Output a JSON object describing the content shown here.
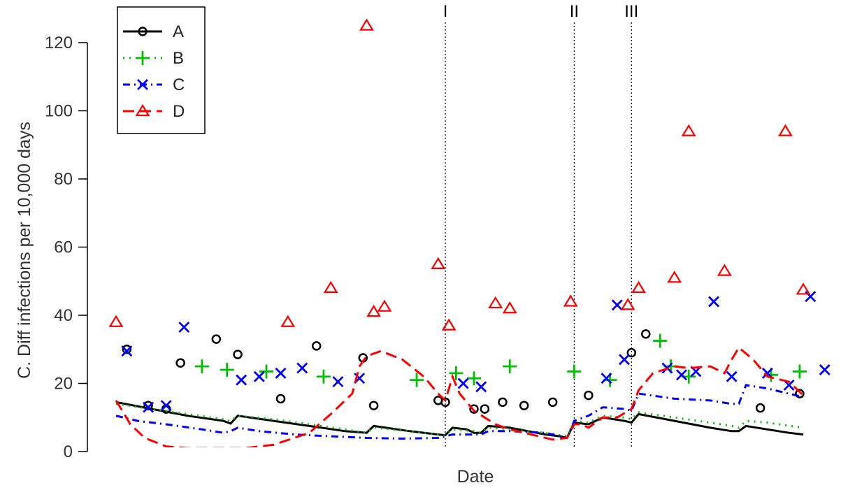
{
  "chart_data": {
    "type": "line",
    "xlabel": "Date",
    "ylabel": "C. Diff infections per 10,000 days",
    "ylim": [
      0,
      130
    ],
    "yticks": [
      "0",
      "20",
      "40",
      "60",
      "80",
      "100",
      "120"
    ],
    "xlim": [
      0,
      100
    ],
    "legend_position": "top-left",
    "markers": [
      {
        "label": "I",
        "x": 46
      },
      {
        "label": "II",
        "x": 64
      },
      {
        "label": "III",
        "x": 72
      }
    ],
    "series": [
      {
        "name": "A",
        "color": "#000000",
        "dash": "solid",
        "symbol": "circle",
        "line": [
          [
            0,
            14.5
          ],
          [
            5,
            12.5
          ],
          [
            10,
            10.5
          ],
          [
            15,
            9
          ],
          [
            16,
            8.2
          ],
          [
            17,
            10.5
          ],
          [
            22,
            9
          ],
          [
            27,
            7.5
          ],
          [
            32,
            6
          ],
          [
            35,
            5.5
          ],
          [
            36,
            7.5
          ],
          [
            41,
            6
          ],
          [
            45,
            5
          ],
          [
            46,
            4.8
          ],
          [
            47,
            7
          ],
          [
            49,
            6.5
          ],
          [
            50,
            5.5
          ],
          [
            51,
            5.5
          ],
          [
            52,
            7.5
          ],
          [
            55,
            7
          ],
          [
            60,
            5
          ],
          [
            62,
            4.5
          ],
          [
            63,
            4
          ],
          [
            64,
            8.5
          ],
          [
            66,
            8
          ],
          [
            68,
            10
          ],
          [
            71,
            9
          ],
          [
            72,
            8.5
          ],
          [
            73,
            11
          ],
          [
            78,
            9
          ],
          [
            83,
            7
          ],
          [
            86,
            6
          ],
          [
            87,
            6
          ],
          [
            88,
            7.5
          ],
          [
            91,
            6.5
          ],
          [
            94,
            5.5
          ],
          [
            96,
            5
          ]
        ],
        "points": [
          [
            1.5,
            30
          ],
          [
            4.5,
            13.5
          ],
          [
            7,
            12.5
          ],
          [
            9,
            26
          ],
          [
            14,
            33
          ],
          [
            17,
            28.5
          ],
          [
            23,
            15.5
          ],
          [
            28,
            31
          ],
          [
            34.5,
            27.5
          ],
          [
            36,
            13.5
          ],
          [
            45,
            15
          ],
          [
            46,
            14.5
          ],
          [
            50,
            12.5
          ],
          [
            51.5,
            12.5
          ],
          [
            54,
            14.5
          ],
          [
            57,
            13.5
          ],
          [
            61,
            14.5
          ],
          [
            66,
            16.5
          ],
          [
            72,
            29
          ],
          [
            74,
            34.5
          ],
          [
            90,
            12.8
          ],
          [
            95.5,
            17
          ]
        ]
      },
      {
        "name": "B",
        "color": "#00c000",
        "dash": "2,7",
        "symbol": "plus",
        "line": [
          [
            0,
            14
          ],
          [
            5,
            12.5
          ],
          [
            10,
            11
          ],
          [
            15,
            9.5
          ],
          [
            16,
            9
          ],
          [
            17,
            10.5
          ],
          [
            22,
            9.5
          ],
          [
            27,
            8
          ],
          [
            32,
            6.5
          ],
          [
            35,
            5.5
          ],
          [
            36,
            7
          ],
          [
            41,
            6
          ],
          [
            45,
            5
          ],
          [
            46,
            4.8
          ],
          [
            47,
            6.5
          ],
          [
            50,
            6
          ],
          [
            51,
            5.5
          ],
          [
            52,
            7
          ],
          [
            55,
            6.5
          ],
          [
            60,
            5.5
          ],
          [
            63,
            4.5
          ],
          [
            64,
            9
          ],
          [
            66,
            8.5
          ],
          [
            68,
            10.5
          ],
          [
            71,
            10
          ],
          [
            72,
            9.5
          ],
          [
            73,
            11.5
          ],
          [
            78,
            10
          ],
          [
            83,
            8.5
          ],
          [
            86,
            7.5
          ],
          [
            87,
            7
          ],
          [
            88,
            9
          ],
          [
            91,
            8.5
          ],
          [
            96,
            7
          ]
        ],
        "points": [
          [
            12,
            25
          ],
          [
            15.5,
            24
          ],
          [
            21,
            23.5
          ],
          [
            29,
            22
          ],
          [
            42,
            21
          ],
          [
            47.5,
            23
          ],
          [
            50,
            21.5
          ],
          [
            55,
            25
          ],
          [
            64,
            23.5
          ],
          [
            69,
            21
          ],
          [
            76,
            32.5
          ],
          [
            77.5,
            25
          ],
          [
            80,
            22
          ],
          [
            91.5,
            22.5
          ],
          [
            95.5,
            23.5
          ]
        ]
      },
      {
        "name": "C",
        "color": "#0000ff",
        "dash": "10,6,2,6",
        "symbol": "cross",
        "line": [
          [
            0,
            10.5
          ],
          [
            3,
            9
          ],
          [
            7,
            8
          ],
          [
            12,
            6.5
          ],
          [
            15,
            5.5
          ],
          [
            16,
            6
          ],
          [
            17,
            7
          ],
          [
            20,
            6
          ],
          [
            25,
            5
          ],
          [
            30,
            4.5
          ],
          [
            35,
            4
          ],
          [
            40,
            3.8
          ],
          [
            45,
            4
          ],
          [
            46,
            4.5
          ],
          [
            47,
            5
          ],
          [
            50,
            5
          ],
          [
            51,
            5
          ],
          [
            52,
            6
          ],
          [
            55,
            6
          ],
          [
            60,
            5.5
          ],
          [
            62,
            4.5
          ],
          [
            63,
            4
          ],
          [
            64,
            9
          ],
          [
            66,
            10.5
          ],
          [
            68,
            13
          ],
          [
            71,
            12.5
          ],
          [
            72,
            12
          ],
          [
            73,
            17
          ],
          [
            78,
            15.5
          ],
          [
            83,
            15
          ],
          [
            86,
            14
          ],
          [
            87,
            14
          ],
          [
            88,
            19.5
          ],
          [
            91,
            18.5
          ],
          [
            96,
            16
          ]
        ],
        "points": [
          [
            1.5,
            29.5
          ],
          [
            4.5,
            13
          ],
          [
            7,
            13.5
          ],
          [
            9.5,
            36.5
          ],
          [
            17.5,
            21
          ],
          [
            20,
            22
          ],
          [
            23,
            23
          ],
          [
            26,
            24.5
          ],
          [
            31,
            20.5
          ],
          [
            34,
            21.5
          ],
          [
            48.5,
            20
          ],
          [
            51,
            19
          ],
          [
            68.5,
            21.5
          ],
          [
            70,
            43
          ],
          [
            71,
            27
          ],
          [
            77,
            24.5
          ],
          [
            79,
            22.5
          ],
          [
            81,
            23.5
          ],
          [
            83.5,
            44
          ],
          [
            86,
            22
          ],
          [
            91,
            23
          ],
          [
            94,
            19.5
          ],
          [
            97,
            45.5
          ],
          [
            99,
            24
          ]
        ]
      },
      {
        "name": "D",
        "color": "#ff0000",
        "dash": "16,8",
        "symbol": "triangle",
        "line": [
          [
            0,
            15
          ],
          [
            2,
            8
          ],
          [
            4,
            4
          ],
          [
            7,
            1.5
          ],
          [
            10,
            1
          ],
          [
            13,
            1
          ],
          [
            18,
            1
          ],
          [
            22,
            2
          ],
          [
            27,
            5.5
          ],
          [
            30,
            11
          ],
          [
            33,
            17
          ],
          [
            34,
            25
          ],
          [
            35,
            28
          ],
          [
            37,
            29.5
          ],
          [
            40,
            27
          ],
          [
            43,
            22
          ],
          [
            45,
            17
          ],
          [
            46,
            15
          ],
          [
            47,
            22
          ],
          [
            48,
            17
          ],
          [
            50,
            12
          ],
          [
            53,
            8
          ],
          [
            55,
            6.5
          ],
          [
            58,
            5
          ],
          [
            61,
            3.5
          ],
          [
            63,
            4
          ],
          [
            64,
            8
          ],
          [
            65,
            8
          ],
          [
            66,
            7
          ],
          [
            68,
            10
          ],
          [
            70,
            10
          ],
          [
            72,
            12.5
          ],
          [
            73,
            18
          ],
          [
            75,
            23
          ],
          [
            78,
            25
          ],
          [
            80,
            24.5
          ],
          [
            83,
            25
          ],
          [
            85,
            23
          ],
          [
            86,
            27
          ],
          [
            87,
            30.5
          ],
          [
            89,
            27
          ],
          [
            91,
            22
          ],
          [
            94,
            20.5
          ],
          [
            96,
            16.5
          ]
        ],
        "points": [
          [
            0,
            38
          ],
          [
            24,
            38
          ],
          [
            30,
            48
          ],
          [
            35,
            125
          ],
          [
            36,
            41
          ],
          [
            37.5,
            42.5
          ],
          [
            45,
            55
          ],
          [
            46.5,
            37
          ],
          [
            53,
            43.5
          ],
          [
            55,
            42
          ],
          [
            63.5,
            44
          ],
          [
            71.5,
            43
          ],
          [
            73,
            48
          ],
          [
            78,
            51
          ],
          [
            80,
            94
          ],
          [
            85,
            53
          ],
          [
            93.5,
            94
          ],
          [
            96,
            47.5
          ]
        ]
      }
    ]
  }
}
